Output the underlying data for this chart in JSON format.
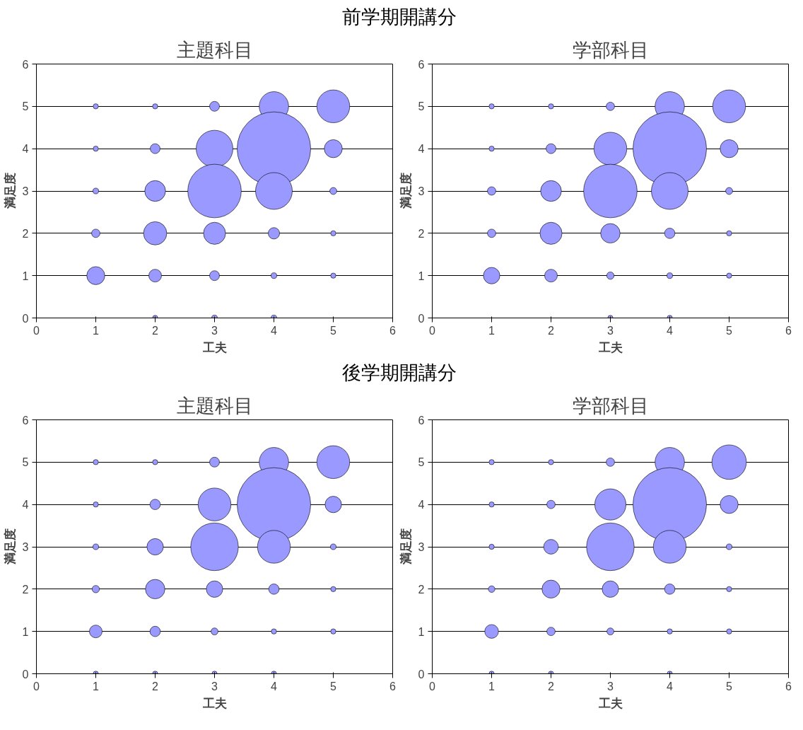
{
  "chart_data": [
    {
      "type": "bubble",
      "subtitle": "前学期開講分",
      "title": "主題科目",
      "xlabel": "工夫",
      "ylabel": "満足度",
      "xlim": [
        0,
        6
      ],
      "ylim": [
        0,
        6
      ],
      "xticks": [
        0,
        1,
        2,
        3,
        4,
        5,
        6
      ],
      "yticks": [
        0,
        1,
        2,
        3,
        4,
        5,
        6
      ],
      "grid": "y",
      "series": [
        {
          "color": "#9999ff",
          "x": [
            1,
            2,
            3,
            4,
            5,
            1,
            2,
            3,
            4,
            5,
            1,
            2,
            3,
            4,
            5,
            1,
            2,
            3,
            4,
            5,
            1,
            2,
            3,
            4,
            5,
            2,
            3,
            4
          ],
          "values": [
            5,
            5,
            5,
            5,
            5,
            4,
            4,
            4,
            4,
            4,
            3,
            3,
            3,
            3,
            3,
            2,
            2,
            2,
            2,
            2,
            1,
            1,
            1,
            1,
            1,
            0,
            0,
            0
          ],
          "sizes": [
            0.005,
            0.005,
            0.018,
            0.16,
            0.2,
            0.005,
            0.018,
            0.25,
            1,
            0.06,
            0.006,
            0.08,
            0.53,
            0.25,
            0.009,
            0.013,
            0.1,
            0.09,
            0.024,
            0.005,
            0.06,
            0.03,
            0.018,
            0.006,
            0.005,
            0.005,
            0.006,
            0.006
          ]
        }
      ]
    },
    {
      "type": "bubble",
      "title": "学部科目",
      "xlabel": "工夫",
      "ylabel": "満足度",
      "xlim": [
        0,
        6
      ],
      "ylim": [
        0,
        6
      ],
      "xticks": [
        0,
        1,
        2,
        3,
        4,
        5,
        6
      ],
      "yticks": [
        0,
        1,
        2,
        3,
        4,
        5,
        6
      ],
      "grid": "y",
      "series": [
        {
          "color": "#9999ff",
          "x": [
            1,
            2,
            3,
            4,
            5,
            1,
            2,
            3,
            4,
            5,
            1,
            2,
            3,
            4,
            5,
            1,
            2,
            3,
            4,
            5,
            1,
            2,
            3,
            4,
            5,
            3,
            4
          ],
          "values": [
            5,
            5,
            5,
            5,
            5,
            4,
            4,
            4,
            4,
            4,
            3,
            3,
            3,
            3,
            3,
            2,
            2,
            2,
            2,
            2,
            1,
            1,
            1,
            1,
            1,
            0,
            0
          ],
          "sizes": [
            0.005,
            0.005,
            0.013,
            0.16,
            0.2,
            0.005,
            0.018,
            0.2,
            1,
            0.06,
            0.013,
            0.08,
            0.53,
            0.25,
            0.009,
            0.013,
            0.09,
            0.07,
            0.02,
            0.005,
            0.05,
            0.03,
            0.01,
            0.006,
            0.005,
            0.005,
            0.005
          ]
        }
      ]
    },
    {
      "type": "bubble",
      "subtitle": "後学期開講分",
      "title": "主題科目",
      "xlabel": "工夫",
      "ylabel": "満足度",
      "xlim": [
        0,
        6
      ],
      "ylim": [
        0,
        6
      ],
      "xticks": [
        0,
        1,
        2,
        3,
        4,
        5,
        6
      ],
      "yticks": [
        0,
        1,
        2,
        3,
        4,
        5,
        6
      ],
      "grid": "y",
      "series": [
        {
          "color": "#9999ff",
          "x": [
            1,
            2,
            3,
            4,
            5,
            1,
            2,
            3,
            4,
            5,
            1,
            2,
            3,
            4,
            5,
            1,
            2,
            3,
            4,
            5,
            1,
            2,
            3,
            4,
            5,
            1,
            2,
            3,
            4
          ],
          "values": [
            5,
            5,
            5,
            5,
            5,
            4,
            4,
            4,
            4,
            4,
            3,
            3,
            3,
            3,
            3,
            2,
            2,
            2,
            2,
            2,
            1,
            1,
            1,
            1,
            1,
            0,
            0,
            0,
            0
          ],
          "sizes": [
            0.005,
            0.005,
            0.018,
            0.16,
            0.2,
            0.005,
            0.02,
            0.2,
            1,
            0.05,
            0.006,
            0.05,
            0.42,
            0.2,
            0.006,
            0.01,
            0.07,
            0.05,
            0.02,
            0.005,
            0.03,
            0.02,
            0.009,
            0.005,
            0.005,
            0.005,
            0.005,
            0.005,
            0.005
          ]
        }
      ]
    },
    {
      "type": "bubble",
      "title": "学部科目",
      "xlabel": "工夫",
      "ylabel": "満足度",
      "xlim": [
        0,
        6
      ],
      "ylim": [
        0,
        6
      ],
      "xticks": [
        0,
        1,
        2,
        3,
        4,
        5,
        6
      ],
      "yticks": [
        0,
        1,
        2,
        3,
        4,
        5,
        6
      ],
      "grid": "y",
      "series": [
        {
          "color": "#9999ff",
          "x": [
            1,
            2,
            3,
            4,
            5,
            1,
            2,
            3,
            4,
            5,
            1,
            2,
            3,
            4,
            5,
            1,
            2,
            3,
            4,
            5,
            1,
            2,
            3,
            4,
            5,
            1,
            2,
            4
          ],
          "values": [
            5,
            5,
            5,
            5,
            5,
            4,
            4,
            4,
            4,
            4,
            3,
            3,
            3,
            3,
            3,
            2,
            2,
            2,
            2,
            2,
            1,
            1,
            1,
            1,
            1,
            0,
            0,
            0
          ],
          "sizes": [
            0.005,
            0.005,
            0.013,
            0.16,
            0.22,
            0.005,
            0.013,
            0.18,
            1,
            0.06,
            0.005,
            0.04,
            0.42,
            0.2,
            0.006,
            0.008,
            0.06,
            0.05,
            0.02,
            0.005,
            0.035,
            0.013,
            0.009,
            0.005,
            0.005,
            0.005,
            0.005,
            0.005
          ]
        }
      ]
    }
  ]
}
